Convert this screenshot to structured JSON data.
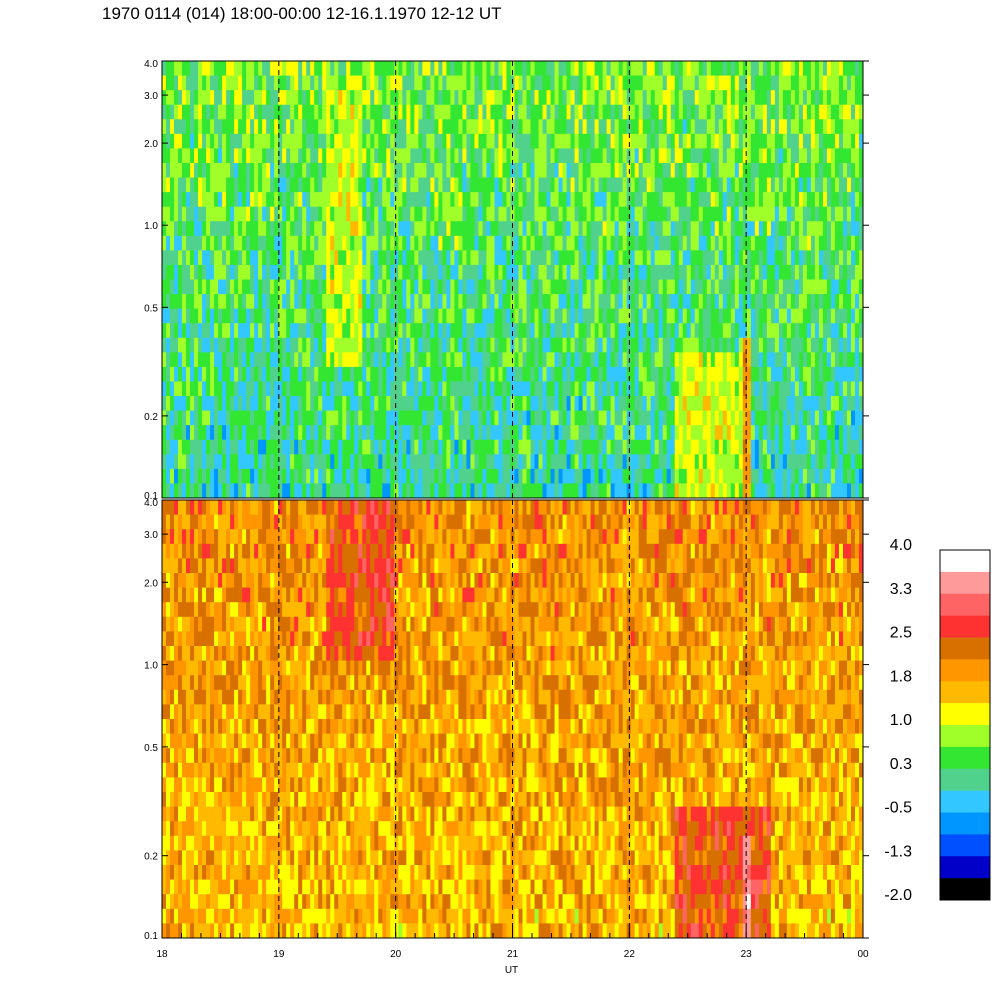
{
  "title": "1970 0114 (014) 18:00-00:00 12-16.1.1970  12-12 UT",
  "chart_data": {
    "type": "heatmap",
    "title": "1970 0114 (014) 18:00-00:00 12-16.1.1970  12-12 UT",
    "xlabel": "UT",
    "x_ticks": [
      "18",
      "19",
      "20",
      "21",
      "22",
      "23",
      "00"
    ],
    "x_range": [
      18,
      24
    ],
    "dashed_lines_at": [
      19,
      20,
      21,
      22,
      23
    ],
    "panels": [
      {
        "name": "upper",
        "y_scale": "log",
        "y_range": [
          0.1,
          4.0
        ],
        "y_ticks": [
          "0.1",
          "0.2",
          "0.5",
          "1.0",
          "2.0",
          "3.0",
          "4.0"
        ],
        "dominant_level": 0.3,
        "features": [
          {
            "from": 19.4,
            "to": 19.7,
            "y_from": 0.3,
            "y_to": 3.5,
            "level": 1.0
          },
          {
            "from": 22.4,
            "to": 23.0,
            "y_from": 0.1,
            "y_to": 0.35,
            "level": 1.0
          },
          {
            "from": 22.98,
            "to": 23.03,
            "y_from": 0.1,
            "y_to": 0.4,
            "level": 1.8
          }
        ]
      },
      {
        "name": "lower",
        "y_scale": "log",
        "y_range": [
          0.1,
          4.0
        ],
        "y_ticks": [
          "0.1",
          "0.2",
          "0.5",
          "1.0",
          "2.0",
          "3.0",
          "4.0"
        ],
        "dominant_level": 1.8,
        "features": [
          {
            "from": 19.4,
            "to": 20.0,
            "y_from": 1.0,
            "y_to": 4.0,
            "level": 2.5
          },
          {
            "from": 22.4,
            "to": 23.2,
            "y_from": 0.1,
            "y_to": 0.3,
            "level": 2.5
          },
          {
            "from": 22.98,
            "to": 23.03,
            "y_from": 0.1,
            "y_to": 0.25,
            "level": 3.3
          }
        ]
      }
    ],
    "colorbar": {
      "labels": [
        "4.0",
        "3.3",
        "2.5",
        "1.8",
        "1.0",
        "0.3",
        "-0.5",
        "-1.3",
        "-2.0"
      ],
      "colors": [
        "#ffffff",
        "#ff9a9a",
        "#ff6464",
        "#ff3232",
        "#d87000",
        "#ff9600",
        "#ffba00",
        "#ffff00",
        "#a0ff28",
        "#32e632",
        "#50d28c",
        "#32c8ff",
        "#0096ff",
        "#0050ff",
        "#0000c8",
        "#000000"
      ]
    }
  }
}
